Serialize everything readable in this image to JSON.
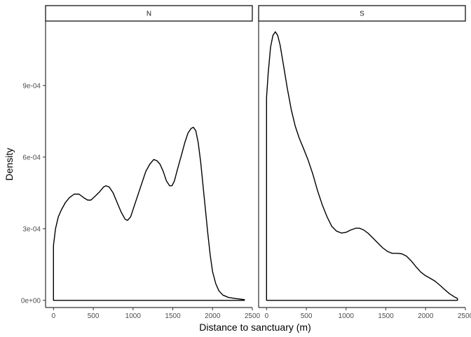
{
  "chart_data": {
    "type": "area",
    "xlabel": "Distance to sanctuary (m)",
    "ylabel": "Density",
    "xlim": [
      -100,
      2500
    ],
    "ylim": [
      -3e-05,
      0.00117
    ],
    "x_ticks": [
      0,
      500,
      1000,
      1500,
      2000,
      2500
    ],
    "x_tick_labels": [
      "0",
      "500",
      "1000",
      "1500",
      "2000",
      "2500"
    ],
    "y_ticks": [
      0,
      0.0003,
      0.0006,
      0.0009
    ],
    "y_tick_labels": [
      "0e+00",
      "3e-04",
      "6e-04",
      "9e-04"
    ],
    "grid": false,
    "panels": [
      {
        "strip_label": "N",
        "x_range": [
          0,
          2400
        ],
        "points": [
          [
            0,
            0.00023
          ],
          [
            25,
            0.0003
          ],
          [
            60,
            0.00035
          ],
          [
            100,
            0.00038
          ],
          [
            150,
            0.00041
          ],
          [
            200,
            0.00043
          ],
          [
            260,
            0.000445
          ],
          [
            320,
            0.000445
          ],
          [
            380,
            0.00043
          ],
          [
            430,
            0.00042
          ],
          [
            470,
            0.00042
          ],
          [
            520,
            0.000435
          ],
          [
            580,
            0.000455
          ],
          [
            630,
            0.000475
          ],
          [
            660,
            0.00048
          ],
          [
            700,
            0.000475
          ],
          [
            750,
            0.00045
          ],
          [
            800,
            0.00041
          ],
          [
            850,
            0.00037
          ],
          [
            900,
            0.00034
          ],
          [
            930,
            0.000335
          ],
          [
            970,
            0.00035
          ],
          [
            1010,
            0.00039
          ],
          [
            1060,
            0.00044
          ],
          [
            1110,
            0.00049
          ],
          [
            1160,
            0.00054
          ],
          [
            1210,
            0.00057
          ],
          [
            1260,
            0.00059
          ],
          [
            1300,
            0.000585
          ],
          [
            1340,
            0.00057
          ],
          [
            1380,
            0.00054
          ],
          [
            1420,
            0.0005
          ],
          [
            1460,
            0.00048
          ],
          [
            1490,
            0.00048
          ],
          [
            1520,
            0.0005
          ],
          [
            1560,
            0.00055
          ],
          [
            1610,
            0.00061
          ],
          [
            1650,
            0.00066
          ],
          [
            1690,
            0.0007
          ],
          [
            1730,
            0.00072
          ],
          [
            1760,
            0.000725
          ],
          [
            1790,
            0.00071
          ],
          [
            1820,
            0.00066
          ],
          [
            1850,
            0.00058
          ],
          [
            1880,
            0.00048
          ],
          [
            1910,
            0.00038
          ],
          [
            1940,
            0.00028
          ],
          [
            1970,
            0.00019
          ],
          [
            2000,
            0.00012
          ],
          [
            2040,
            7e-05
          ],
          [
            2080,
            4e-05
          ],
          [
            2130,
            2.2e-05
          ],
          [
            2200,
            1.2e-05
          ],
          [
            2280,
            8e-06
          ],
          [
            2350,
            5e-06
          ],
          [
            2400,
            3e-06
          ]
        ]
      },
      {
        "strip_label": "S",
        "x_range": [
          0,
          2400
        ],
        "points": [
          [
            0,
            0.00085
          ],
          [
            20,
            0.00095
          ],
          [
            50,
            0.00106
          ],
          [
            80,
            0.00111
          ],
          [
            110,
            0.001125
          ],
          [
            140,
            0.00111
          ],
          [
            170,
            0.00107
          ],
          [
            210,
            0.00099
          ],
          [
            260,
            0.00089
          ],
          [
            310,
            0.0008
          ],
          [
            360,
            0.00073
          ],
          [
            410,
            0.00068
          ],
          [
            460,
            0.00064
          ],
          [
            520,
            0.00059
          ],
          [
            580,
            0.00053
          ],
          [
            640,
            0.00046
          ],
          [
            700,
            0.0004
          ],
          [
            760,
            0.00035
          ],
          [
            820,
            0.00031
          ],
          [
            880,
            0.00029
          ],
          [
            940,
            0.000282
          ],
          [
            1000,
            0.000285
          ],
          [
            1060,
            0.000295
          ],
          [
            1120,
            0.000302
          ],
          [
            1170,
            0.000302
          ],
          [
            1220,
            0.000295
          ],
          [
            1280,
            0.00028
          ],
          [
            1340,
            0.00026
          ],
          [
            1400,
            0.00024
          ],
          [
            1460,
            0.00022
          ],
          [
            1520,
            0.000205
          ],
          [
            1580,
            0.000197
          ],
          [
            1640,
            0.000197
          ],
          [
            1700,
            0.000195
          ],
          [
            1760,
            0.000185
          ],
          [
            1820,
            0.000165
          ],
          [
            1880,
            0.00014
          ],
          [
            1940,
            0.000118
          ],
          [
            2000,
            0.000103
          ],
          [
            2060,
            9.2e-05
          ],
          [
            2120,
            8e-05
          ],
          [
            2180,
            6.3e-05
          ],
          [
            2240,
            4.5e-05
          ],
          [
            2300,
            2.8e-05
          ],
          [
            2360,
            1.5e-05
          ],
          [
            2400,
            8e-06
          ]
        ]
      }
    ]
  }
}
